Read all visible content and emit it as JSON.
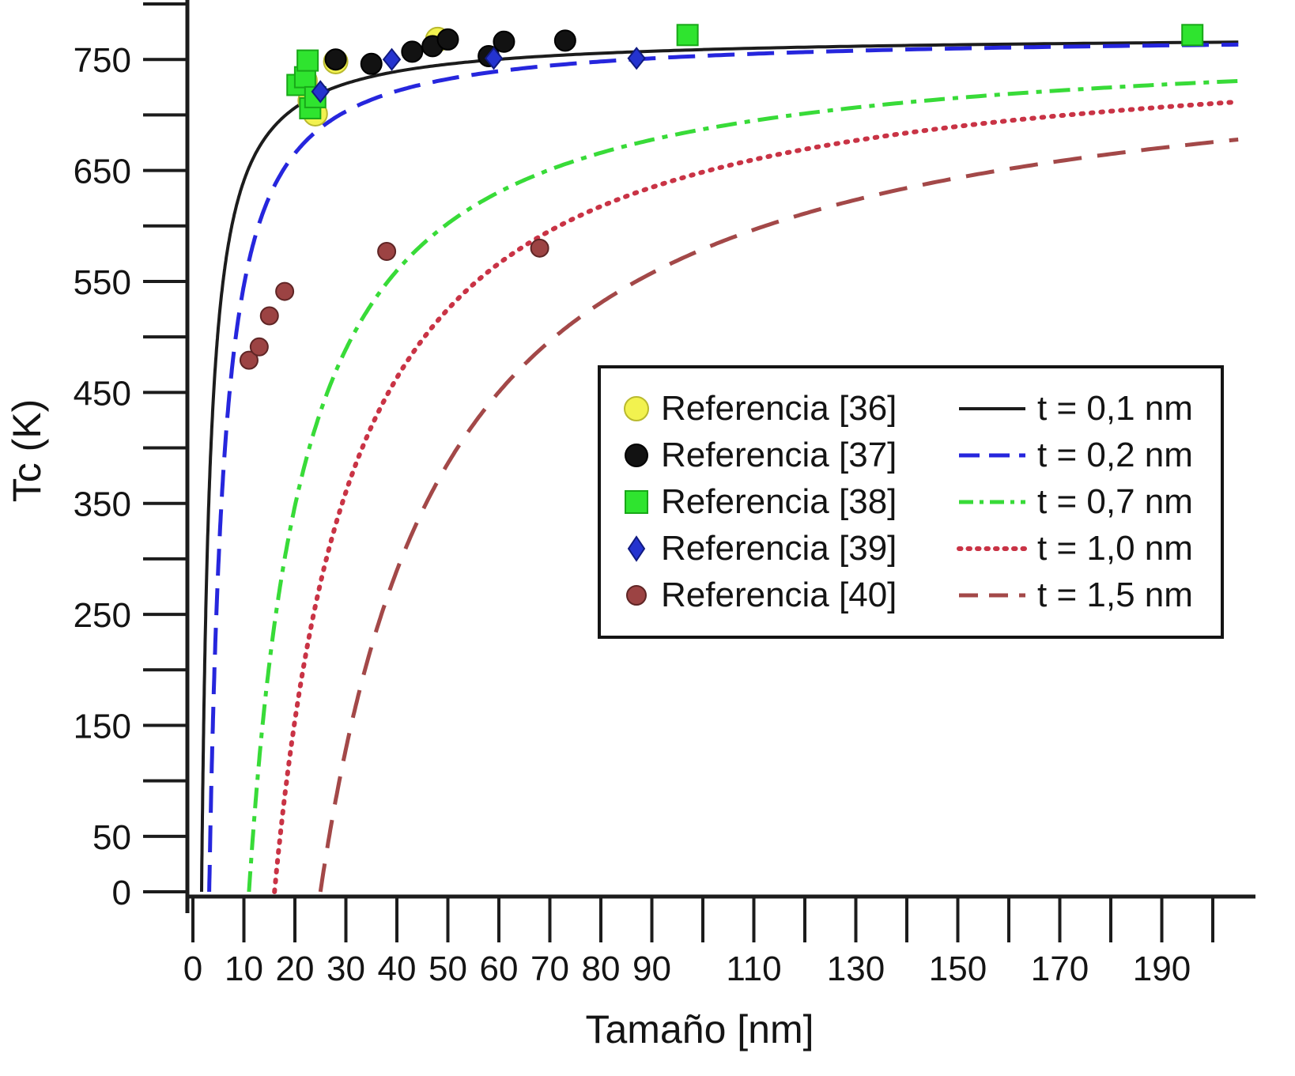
{
  "chart_data": {
    "type": "scatter",
    "title": "",
    "xlabel": "Tamaño [nm]",
    "ylabel": "Tc (K)",
    "xlim": [
      0,
      205
    ],
    "ylim": [
      0,
      800
    ],
    "grid": false,
    "legend_position": "center-right",
    "x_tick_step": 10,
    "x_tick_max": 200,
    "x_tick_labels": [
      0,
      10,
      20,
      30,
      40,
      50,
      60,
      70,
      80,
      90,
      110,
      130,
      150,
      170,
      190
    ],
    "y_tick_step": 50,
    "y_tick_labels": [
      0,
      50,
      150,
      250,
      350,
      450,
      550,
      650,
      750
    ],
    "tc_bulk_K": 772,
    "series": [
      {
        "name": "Referencia [36]",
        "marker": "circle",
        "color": "#f2f24f",
        "edge": "#b9b92e",
        "size": 15,
        "points": [
          [
            22,
            731
          ],
          [
            23,
            713
          ],
          [
            24,
            701
          ],
          [
            28,
            748
          ],
          [
            48,
            768
          ]
        ]
      },
      {
        "name": "Referencia [37]",
        "marker": "circle",
        "color": "#121212",
        "edge": "#000000",
        "size": 13,
        "points": [
          [
            28,
            750
          ],
          [
            35,
            746
          ],
          [
            43,
            757
          ],
          [
            47,
            762
          ],
          [
            50,
            768
          ],
          [
            58,
            753
          ],
          [
            61,
            766
          ],
          [
            73,
            767
          ]
        ]
      },
      {
        "name": "Referencia [38]",
        "marker": "square",
        "color": "#2fe42f",
        "edge": "#18a818",
        "size": 13,
        "points": [
          [
            20.5,
            727
          ],
          [
            22,
            734
          ],
          [
            22.5,
            749
          ],
          [
            23,
            706
          ],
          [
            24,
            716
          ],
          [
            97,
            772
          ],
          [
            196,
            772
          ]
        ]
      },
      {
        "name": "Referencia [39]",
        "marker": "diamond",
        "color": "#2433cf",
        "edge": "#101a80",
        "size": 13,
        "points": [
          [
            25,
            721
          ],
          [
            39,
            750
          ],
          [
            59,
            751
          ],
          [
            87,
            751
          ]
        ]
      },
      {
        "name": "Referencia [40]",
        "marker": "circle",
        "color": "#9c4343",
        "edge": "#5f2525",
        "size": 11,
        "points": [
          [
            11,
            479
          ],
          [
            13,
            491
          ],
          [
            15,
            519
          ],
          [
            18,
            541
          ],
          [
            38,
            577
          ],
          [
            68,
            580
          ]
        ]
      }
    ],
    "curves": [
      {
        "label": "t = 0,1 nm",
        "t_nm": 0.1,
        "color": "#1c1c1c",
        "style": "solid",
        "width": 4,
        "dash": "none",
        "cap": "butt",
        "legend_dash": "none",
        "x0": 1.7,
        "p": 1.0
      },
      {
        "label": "t = 0,2 nm",
        "t_nm": 0.2,
        "color": "#2626dd",
        "style": "dashed",
        "width": 5,
        "dash": "34 16",
        "cap": "butt",
        "legend_dash": "26 12",
        "x0": 3.2,
        "p": 1.08
      },
      {
        "label": "t = 0,7 nm",
        "t_nm": 0.7,
        "color": "#38db38",
        "style": "dash-dot",
        "width": 5,
        "dash": "26 10 7 10",
        "cap": "butt",
        "legend_dash": "18 8 5 8",
        "x0": 11.0,
        "p": 1.0
      },
      {
        "label": "t = 1,0 nm",
        "t_nm": 1.0,
        "color": "#c93345",
        "style": "dotted",
        "width": 6,
        "dash": "2.5 10",
        "cap": "round",
        "legend_dash": "2.5 9",
        "x0": 16.0,
        "p": 1.0
      },
      {
        "label": "t = 1,5 nm",
        "t_nm": 1.5,
        "color": "#a34848",
        "style": "long-dash",
        "width": 5,
        "dash": "36 20",
        "cap": "butt",
        "legend_dash": "24 14",
        "x0": 25.0,
        "p": 1.0
      }
    ]
  }
}
